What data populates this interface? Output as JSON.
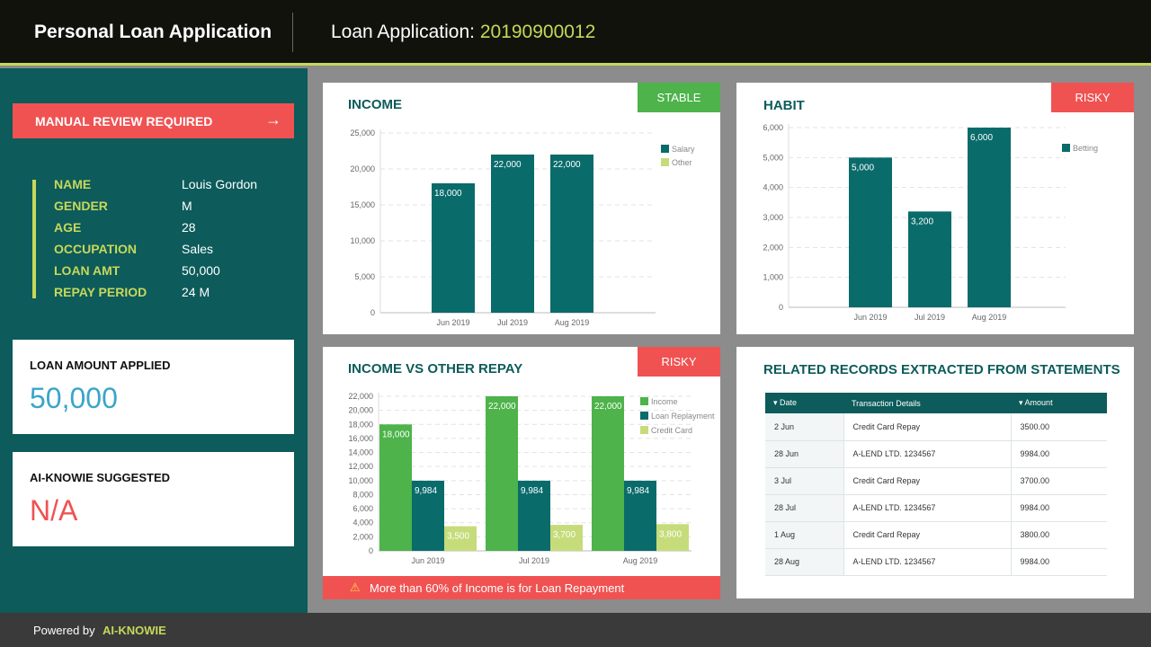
{
  "header": {
    "app_title": "Personal Loan Application",
    "loan_app_label": "Loan Application:",
    "loan_app_number": "20190900012"
  },
  "sidebar": {
    "review_button": "MANUAL REVIEW REQUIRED",
    "applicant": [
      {
        "key": "NAME",
        "value": "Louis Gordon"
      },
      {
        "key": "GENDER",
        "value": "M"
      },
      {
        "key": "AGE",
        "value": "28"
      },
      {
        "key": "OCCUPATION",
        "value": "Sales"
      },
      {
        "key": "LOAN AMT",
        "value": "50,000"
      },
      {
        "key": "REPAY PERIOD",
        "value": "24 M"
      }
    ],
    "loan_amount_title": "LOAN AMOUNT APPLIED",
    "loan_amount_value": "50,000",
    "suggested_title": "AI-KNOWIE SUGGESTED",
    "suggested_value": "N/A"
  },
  "panels": {
    "income": {
      "title": "INCOME",
      "badge": "STABLE"
    },
    "habit": {
      "title": "HABIT",
      "badge": "RISKY"
    },
    "repay": {
      "title": "INCOME VS OTHER REPAY",
      "badge": "RISKY",
      "warning": "More than 60% of Income is for Loan Repayment"
    },
    "records": {
      "title": "RELATED RECORDS EXTRACTED FROM STATEMENTS",
      "columns": [
        "Date",
        "Transaction Details",
        "Amount"
      ],
      "rows": [
        [
          "2 Jun",
          "Credit Card Repay",
          "3500.00"
        ],
        [
          "28 Jun",
          "A-LEND LTD. 1234567",
          "9984.00"
        ],
        [
          "3 Jul",
          "Credit Card Repay",
          "3700.00"
        ],
        [
          "28 Jul",
          "A-LEND LTD. 1234567",
          "9984.00"
        ],
        [
          "1 Aug",
          "Credit Card Repay",
          "3800.00"
        ],
        [
          "28 Aug",
          "A-LEND LTD. 1234567",
          "9984.00"
        ]
      ]
    }
  },
  "footer": {
    "powered_by": "Powered by",
    "brand": "AI-KNOWIE"
  },
  "colors": {
    "teal": "#0d5b5b",
    "bar_teal": "#0a6b6b",
    "lime": "#c6d85a",
    "green": "#4db34a",
    "red": "#f05252",
    "light_green": "#c6dc7a",
    "blue_value": "#3aa5c8"
  },
  "chart_data": [
    {
      "type": "bar",
      "categories": [
        "Jun 2019",
        "Jul 2019",
        "Aug 2019"
      ],
      "series": [
        {
          "name": "Salary",
          "values": [
            18000,
            22000,
            22000
          ]
        },
        {
          "name": "Other",
          "values": [
            0,
            0,
            0
          ]
        }
      ],
      "ylim": [
        0,
        25000
      ],
      "yticks": [
        "0",
        "5,000",
        "10,000",
        "15,000",
        "20,000",
        "25,000"
      ],
      "grid": true,
      "legend": "top-right"
    },
    {
      "type": "bar",
      "categories": [
        "Jun 2019",
        "Jul 2019",
        "Aug 2019"
      ],
      "series": [
        {
          "name": "Betting",
          "values": [
            5000,
            3200,
            6000
          ]
        }
      ],
      "ylim": [
        0,
        6000
      ],
      "yticks": [
        "0",
        "1,000",
        "2,000",
        "3,000",
        "4,000",
        "5,000",
        "6,000"
      ],
      "grid": true,
      "legend": "top-right"
    },
    {
      "type": "bar",
      "categories": [
        "Jun 2019",
        "Jul 2019",
        "Aug 2019"
      ],
      "series": [
        {
          "name": "Income",
          "values": [
            18000,
            22000,
            22000
          ]
        },
        {
          "name": "Loan Replayment",
          "values": [
            9984,
            9984,
            9984
          ]
        },
        {
          "name": "Credit Card",
          "values": [
            3500,
            3700,
            3800
          ]
        }
      ],
      "ylim": [
        0,
        22000
      ],
      "yticks": [
        "0",
        "2,000",
        "4,000",
        "6,000",
        "8,000",
        "10,000",
        "12,000",
        "14,000",
        "16,000",
        "18,000",
        "20,000",
        "22,000"
      ],
      "grid": true,
      "legend": "top-right"
    }
  ]
}
